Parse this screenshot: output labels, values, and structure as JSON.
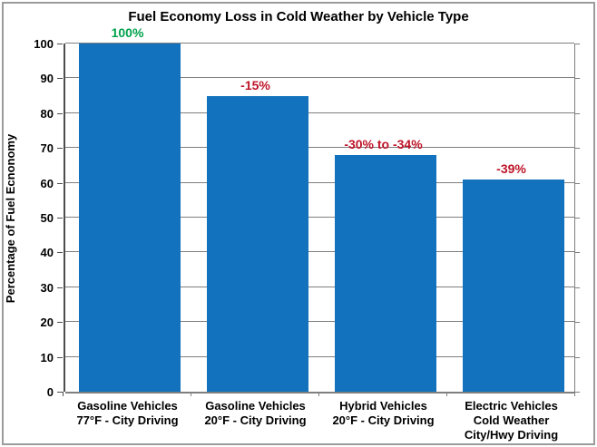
{
  "chart_data": {
    "type": "bar",
    "title": "Fuel Economy Loss in Cold Weather by Vehicle Type",
    "ylabel": "Percentage of Fuel Ecnonomy",
    "xlabel": "",
    "ylim": [
      0,
      100
    ],
    "ytick_step": 10,
    "grid": true,
    "legend": false,
    "categories": [
      [
        "Gasoline Vehicles",
        "77°F - City Driving"
      ],
      [
        "Gasoline Vehicles",
        "20°F - City Driving"
      ],
      [
        "Hybrid Vehicles",
        "20°F - City Driving"
      ],
      [
        "Electric Vehicles",
        "Cold Weather",
        "City/Hwy Driving"
      ]
    ],
    "values": [
      100,
      85,
      68,
      61
    ],
    "bar_labels": [
      "100%",
      "-15%",
      "-30% to -34%",
      "-39%"
    ],
    "bar_label_color_keys": [
      "positive",
      "negative",
      "negative",
      "negative"
    ],
    "colors": {
      "bar": "#1272BD",
      "positive": "#00A14B",
      "negative": "#BE1428",
      "grid": "#7f7f7f",
      "axis": "#4d4d4d",
      "text": "#000000"
    }
  }
}
